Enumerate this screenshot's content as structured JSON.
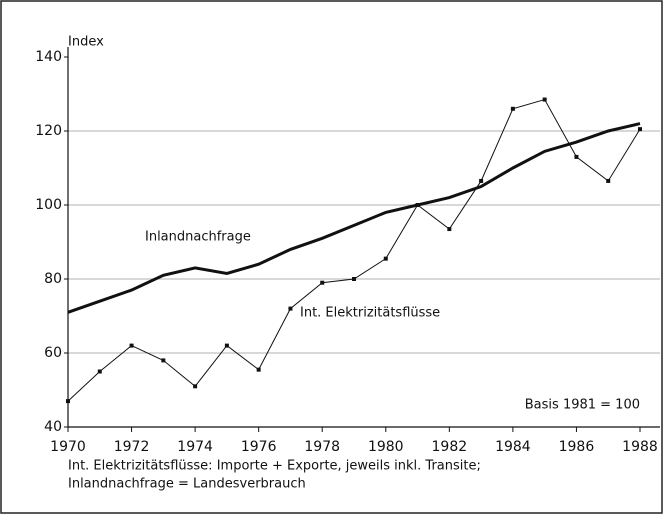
{
  "chart_data": {
    "type": "line",
    "ylabel": "Index",
    "x": [
      1970,
      1971,
      1972,
      1973,
      1974,
      1975,
      1976,
      1977,
      1978,
      1979,
      1980,
      1981,
      1982,
      1983,
      1984,
      1985,
      1986,
      1987,
      1988
    ],
    "series": [
      {
        "name": "Inlandnachfrage",
        "color": "#111111",
        "values": [
          71,
          74,
          77,
          81,
          83,
          81.5,
          84,
          88,
          91,
          94.5,
          98,
          100,
          102,
          105,
          110,
          114.5,
          117,
          120,
          122
        ]
      },
      {
        "name": "Int. Elektrizitätsflüsse",
        "color": "#111111",
        "values": [
          47,
          55,
          62,
          58,
          51,
          62,
          55.5,
          72,
          79,
          80,
          85.5,
          100,
          93.5,
          106.5,
          126,
          128.5,
          113,
          106.5,
          120.5
        ]
      }
    ],
    "xlim": [
      1970,
      1988
    ],
    "xticks": [
      1970,
      1972,
      1974,
      1976,
      1978,
      1980,
      1982,
      1984,
      1986,
      1988
    ],
    "ylim": [
      40,
      140
    ],
    "yticks": [
      40,
      60,
      80,
      100,
      120,
      140
    ],
    "grid": true,
    "annotations": [
      "Basis 1981 = 100"
    ],
    "notes": [
      "Int. Elektrizitätsflüsse: Importe + Exporte, jeweils inkl. Transite;",
      "Inlandnachfrage = Landesverbrauch"
    ]
  }
}
